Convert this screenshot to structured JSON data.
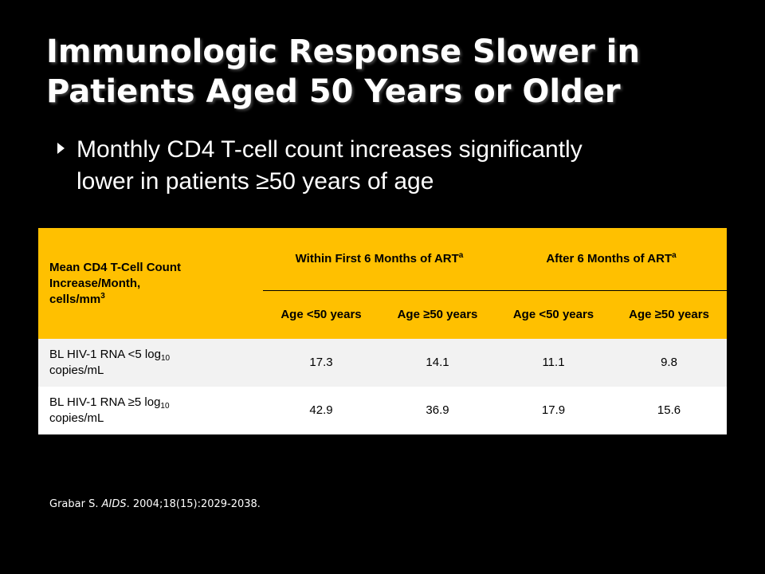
{
  "title": {
    "line1": "Immunologic Response Slower in",
    "line2": "Patients Aged 50 Years or Older"
  },
  "bullet": {
    "line1": "Monthly CD4 T-cell count increases significantly",
    "line2": "lower in patients ≥50 years of age"
  },
  "table": {
    "corner_header": {
      "line1": "Mean CD4 T-Cell Count",
      "line2": "Increase/Month,",
      "line3_base": "cells/mm",
      "line3_sup": "3"
    },
    "groups": [
      {
        "label": "Within First 6 Months of ART",
        "sup": "a"
      },
      {
        "label": "After 6 Months of ART",
        "sup": "a"
      }
    ],
    "subheaders": [
      "Age <50 years",
      "Age ≥50 years",
      "Age <50 years",
      "Age ≥50 years"
    ],
    "rows": [
      {
        "label_pre": "BL HIV-1 RNA <5 log",
        "label_sub": "10",
        "label_post": "copies/mL",
        "values": [
          "17.3",
          "14.1",
          "11.1",
          "9.8"
        ]
      },
      {
        "label_pre": "BL HIV-1 RNA ≥5 log",
        "label_sub": "10",
        "label_post": "copies/mL",
        "values": [
          "42.9",
          "36.9",
          "17.9",
          "15.6"
        ]
      }
    ]
  },
  "reference": {
    "author": "Grabar S. ",
    "journal": "AIDS",
    "details": ". 2004;18(15):2029-2038."
  },
  "colors": {
    "background": "#000000",
    "header_fill": "#ffc000",
    "row_alt_fill": "#f2f2f2",
    "text": "#ffffff"
  }
}
